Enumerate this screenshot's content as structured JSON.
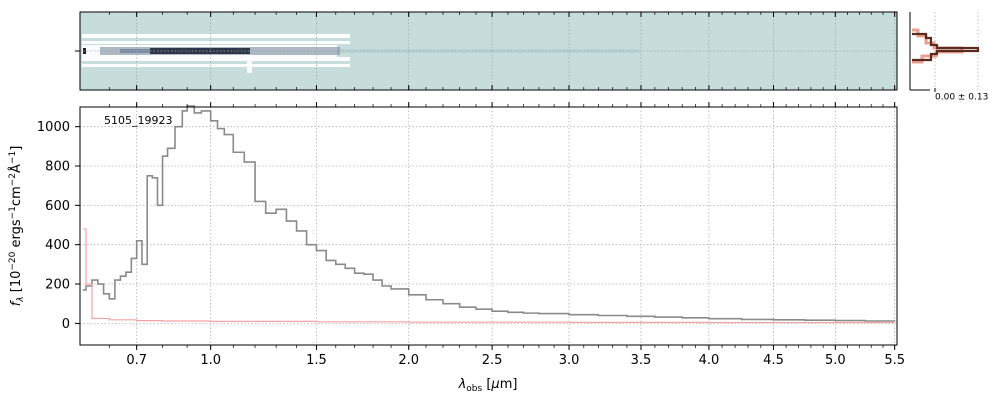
{
  "chart_data": [
    {
      "type": "heatmap",
      "panel": "2d-spectrum",
      "description_colormap": "bone-like (white = low, dark navy = high), background pale teal",
      "colors": {
        "background": "#c7dddc",
        "trace_dark": "#1a1f33",
        "trace_mid": "#6f7f97",
        "trace_light": "#ffffff"
      },
      "grid": true
    },
    {
      "type": "line",
      "panel": "cross-dispersion-profile",
      "series": [
        {
          "color": "#5b2c1e"
        },
        {
          "color": "#e8a090"
        }
      ],
      "tick_labels": [
        {
          "label": "0.00 ± 0.13",
          "axis": "x"
        }
      ]
    },
    {
      "type": "line",
      "panel": "1d-spectrum",
      "title": "",
      "annotation": "5105_19923",
      "xlabel": "$\\lambda_{\\rm obs}$ [$\\mu$m]",
      "ylabel": "$f_\\lambda$ [$10^{-20}$ ergs$^{-1}$cm$^{-2}$Å$^{-1}$]",
      "xlim": [
        0.5,
        5.52
      ],
      "ylim": [
        -110,
        1100
      ],
      "x_scale": "reciprocal",
      "x_ticks": [
        0.7,
        1.0,
        1.5,
        2.0,
        2.5,
        3.0,
        3.5,
        4.0,
        4.5,
        5.0,
        5.5
      ],
      "x_tick_labels": [
        "0.7",
        "1.0",
        "1.5",
        "2.0",
        "2.5",
        "3.0",
        "3.5",
        "4.0",
        "4.5",
        "5.0",
        "5.5"
      ],
      "y_ticks": [
        0,
        200,
        400,
        600,
        800,
        1000
      ],
      "y_tick_labels": [
        "0",
        "200",
        "400",
        "600",
        "800",
        "1000"
      ],
      "grid": true,
      "series": [
        {
          "color": "#8a8a8a",
          "x": [
            0.51,
            0.52,
            0.54,
            0.56,
            0.58,
            0.6,
            0.62,
            0.64,
            0.66,
            0.68,
            0.7,
            0.72,
            0.74,
            0.76,
            0.78,
            0.8,
            0.82,
            0.85,
            0.88,
            0.9,
            0.93,
            0.96,
            1.0,
            1.03,
            1.06,
            1.1,
            1.15,
            1.2,
            1.25,
            1.3,
            1.35,
            1.4,
            1.45,
            1.5,
            1.55,
            1.6,
            1.65,
            1.7,
            1.75,
            1.8,
            1.85,
            1.9,
            2.0,
            2.1,
            2.2,
            2.3,
            2.4,
            2.5,
            2.6,
            2.7,
            2.8,
            3.0,
            3.2,
            3.4,
            3.6,
            3.8,
            4.0,
            4.25,
            4.5,
            4.75,
            5.0,
            5.25,
            5.5
          ],
          "y": [
            170,
            190,
            220,
            200,
            150,
            125,
            220,
            240,
            260,
            330,
            420,
            300,
            750,
            740,
            600,
            850,
            890,
            1000,
            1080,
            1110,
            1070,
            1080,
            1030,
            990,
            960,
            870,
            820,
            620,
            560,
            580,
            520,
            470,
            400,
            370,
            320,
            300,
            280,
            255,
            250,
            220,
            190,
            175,
            145,
            120,
            100,
            82,
            72,
            62,
            56,
            52,
            50,
            44,
            40,
            36,
            32,
            28,
            24,
            20,
            18,
            16,
            14,
            12,
            11
          ]
        },
        {
          "color": "#f4a3a3",
          "x": [
            0.51,
            0.52,
            0.54,
            0.6,
            0.7,
            0.8,
            1.0,
            1.5,
            2.0,
            3.0,
            4.0,
            5.0,
            5.5
          ],
          "y": [
            480,
            200,
            25,
            18,
            14,
            12,
            10,
            8,
            6,
            5,
            4,
            4,
            4
          ]
        }
      ]
    }
  ]
}
